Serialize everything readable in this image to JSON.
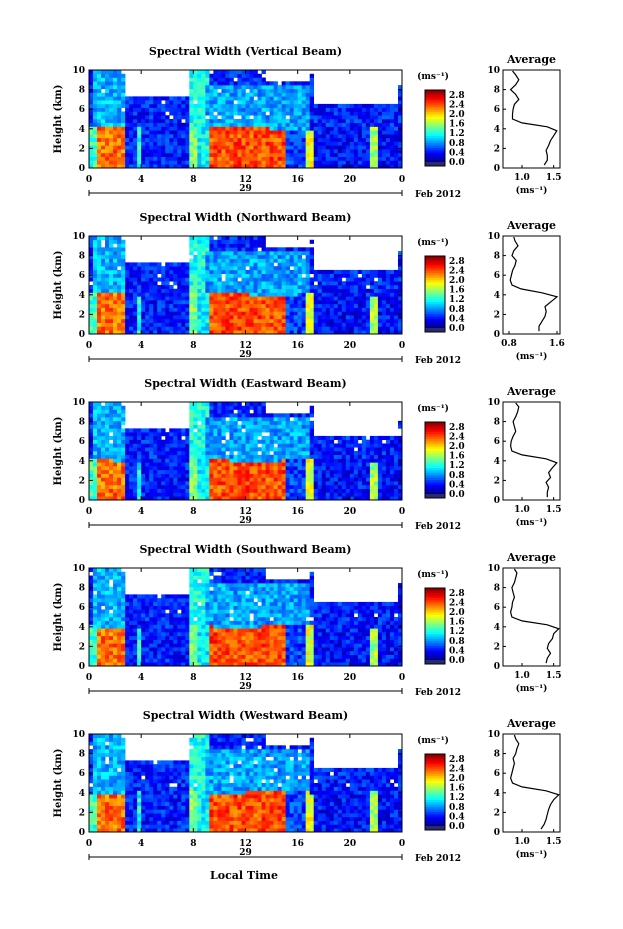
{
  "figure": {
    "bottom_xlabel": "Local Time",
    "date_label": "Feb 2012",
    "colorbar_unit": "(ms⁻¹)",
    "profile_title": "Average",
    "profile_xunit": "(ms⁻¹)"
  },
  "chart_data": [
    {
      "type": "heatmap",
      "title": "Spectral Width (Vertical Beam)",
      "ylabel": "Height (km)",
      "x_ticks": [
        "0",
        "4",
        "8",
        "12",
        "16",
        "20",
        "0"
      ],
      "x_day": "29",
      "y_ticks": [
        "0",
        "2",
        "4",
        "6",
        "8",
        "10"
      ],
      "xlim": [
        0,
        24
      ],
      "ylim": [
        0,
        10
      ],
      "colorbar": {
        "ticks": [
          "0.0",
          "0.4",
          "0.8",
          "1.2",
          "1.6",
          "2.0",
          "2.4",
          "2.8"
        ],
        "range": [
          0,
          3.0
        ]
      },
      "profile": {
        "title": "Average",
        "x_ticks": [
          "1.0",
          "1.5"
        ],
        "xlim": [
          0.7,
          1.6
        ],
        "ylim": [
          0,
          10
        ],
        "heights": [
          0.3,
          0.8,
          1.3,
          1.8,
          2.3,
          2.8,
          3.3,
          3.8,
          4.2,
          4.6,
          5.0,
          5.5,
          6.0,
          6.5,
          7.0,
          7.5,
          8.0,
          8.5,
          9.0,
          9.5,
          9.9
        ],
        "values": [
          1.35,
          1.4,
          1.4,
          1.38,
          1.42,
          1.45,
          1.5,
          1.55,
          1.4,
          1.0,
          0.85,
          0.85,
          0.86,
          0.88,
          0.95,
          0.9,
          0.82,
          0.9,
          0.95,
          0.9,
          0.85
        ]
      }
    },
    {
      "type": "heatmap",
      "title": "Spectral Width (Northward Beam)",
      "ylabel": "Height (km)",
      "x_ticks": [
        "0",
        "4",
        "8",
        "12",
        "16",
        "20",
        "0"
      ],
      "x_day": "29",
      "y_ticks": [
        "0",
        "2",
        "4",
        "6",
        "8",
        "10"
      ],
      "xlim": [
        0,
        24
      ],
      "ylim": [
        0,
        10
      ],
      "colorbar": {
        "ticks": [
          "0.0",
          "0.4",
          "0.8",
          "1.2",
          "1.6",
          "2.0",
          "2.4",
          "2.8"
        ],
        "range": [
          0,
          3.0
        ]
      },
      "profile": {
        "title": "Average",
        "x_ticks": [
          "0.8",
          "1.6"
        ],
        "xlim": [
          0.7,
          1.65
        ],
        "ylim": [
          0,
          10
        ],
        "heights": [
          0.3,
          0.8,
          1.3,
          1.8,
          2.3,
          2.8,
          3.3,
          3.8,
          4.2,
          4.6,
          5.0,
          5.5,
          6.0,
          6.5,
          7.0,
          7.5,
          8.0,
          8.5,
          9.0,
          9.5,
          9.9
        ],
        "values": [
          1.3,
          1.3,
          1.35,
          1.4,
          1.42,
          1.4,
          1.5,
          1.6,
          1.35,
          1.0,
          0.85,
          0.82,
          0.84,
          0.86,
          0.9,
          0.92,
          0.85,
          0.88,
          0.95,
          0.9,
          0.88
        ]
      }
    },
    {
      "type": "heatmap",
      "title": "Spectral Width (Eastward Beam)",
      "ylabel": "Height (km)",
      "x_ticks": [
        "0",
        "4",
        "8",
        "12",
        "16",
        "20",
        "0"
      ],
      "x_day": "29",
      "y_ticks": [
        "0",
        "2",
        "4",
        "6",
        "8",
        "10"
      ],
      "xlim": [
        0,
        24
      ],
      "ylim": [
        0,
        10
      ],
      "colorbar": {
        "ticks": [
          "0.0",
          "0.4",
          "0.8",
          "1.2",
          "1.6",
          "2.0",
          "2.4",
          "2.8"
        ],
        "range": [
          0,
          3.0
        ]
      },
      "profile": {
        "title": "Average",
        "x_ticks": [
          "1.0",
          "1.5"
        ],
        "xlim": [
          0.7,
          1.6
        ],
        "ylim": [
          0,
          10
        ],
        "heights": [
          0.3,
          0.8,
          1.3,
          1.8,
          2.3,
          2.8,
          3.3,
          3.8,
          4.2,
          4.6,
          5.0,
          5.5,
          6.0,
          6.5,
          7.0,
          7.5,
          8.0,
          8.5,
          9.0,
          9.5,
          9.9
        ],
        "values": [
          1.4,
          1.4,
          1.42,
          1.38,
          1.45,
          1.42,
          1.48,
          1.55,
          1.38,
          1.0,
          0.84,
          0.82,
          0.83,
          0.86,
          0.9,
          0.88,
          0.86,
          0.9,
          0.93,
          0.95,
          0.9
        ]
      }
    },
    {
      "type": "heatmap",
      "title": "Spectral Width (Southward Beam)",
      "ylabel": "Height (km)",
      "x_ticks": [
        "0",
        "4",
        "8",
        "12",
        "16",
        "20",
        "0"
      ],
      "x_day": "29",
      "y_ticks": [
        "0",
        "2",
        "4",
        "6",
        "8",
        "10"
      ],
      "xlim": [
        0,
        24
      ],
      "ylim": [
        0,
        10
      ],
      "colorbar": {
        "ticks": [
          "0.0",
          "0.4",
          "0.8",
          "1.2",
          "1.6",
          "2.0",
          "2.4",
          "2.8"
        ],
        "range": [
          0,
          3.0
        ]
      },
      "profile": {
        "title": "Average",
        "x_ticks": [
          "1.0",
          "1.5"
        ],
        "xlim": [
          0.7,
          1.6
        ],
        "ylim": [
          0,
          10
        ],
        "heights": [
          0.3,
          0.8,
          1.3,
          1.8,
          2.3,
          2.8,
          3.3,
          3.8,
          4.2,
          4.6,
          5.0,
          5.5,
          6.0,
          6.5,
          7.0,
          7.5,
          8.0,
          8.5,
          9.0,
          9.5,
          9.9
        ],
        "values": [
          1.38,
          1.4,
          1.45,
          1.4,
          1.42,
          1.48,
          1.5,
          1.58,
          1.4,
          1.0,
          0.84,
          0.82,
          0.84,
          0.85,
          0.88,
          0.86,
          0.84,
          0.88,
          0.9,
          0.92,
          0.88
        ]
      }
    },
    {
      "type": "heatmap",
      "title": "Spectral Width (Westward Beam)",
      "ylabel": "Height (km)",
      "x_ticks": [
        "0",
        "4",
        "8",
        "12",
        "16",
        "20",
        "0"
      ],
      "x_day": "29",
      "y_ticks": [
        "0",
        "2",
        "4",
        "6",
        "8",
        "10"
      ],
      "xlim": [
        0,
        24
      ],
      "ylim": [
        0,
        10
      ],
      "colorbar": {
        "ticks": [
          "0.0",
          "0.4",
          "0.8",
          "1.2",
          "1.6",
          "2.0",
          "2.4",
          "2.8"
        ],
        "range": [
          0,
          3.0
        ]
      },
      "profile": {
        "title": "Average",
        "x_ticks": [
          "1.0",
          "1.5"
        ],
        "xlim": [
          0.7,
          1.6
        ],
        "ylim": [
          0,
          10
        ],
        "heights": [
          0.3,
          0.8,
          1.3,
          1.8,
          2.3,
          2.8,
          3.3,
          3.8,
          4.2,
          4.6,
          5.0,
          5.5,
          6.0,
          6.5,
          7.0,
          7.5,
          8.0,
          8.5,
          9.0,
          9.5,
          9.9
        ],
        "values": [
          1.3,
          1.35,
          1.38,
          1.4,
          1.42,
          1.45,
          1.5,
          1.58,
          1.38,
          1.0,
          0.85,
          0.82,
          0.84,
          0.86,
          0.88,
          0.86,
          0.9,
          0.92,
          0.95,
          0.9,
          0.88
        ]
      }
    }
  ]
}
